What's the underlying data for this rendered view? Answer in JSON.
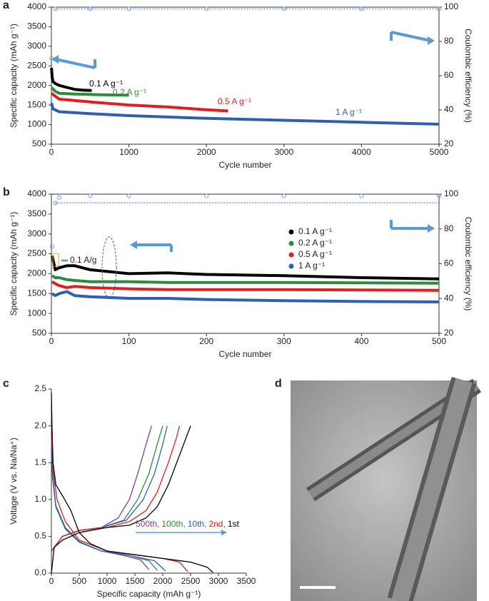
{
  "chart_data": [
    {
      "type": "line",
      "panel": "a",
      "xlabel": "Cycle number",
      "ylabel": "Specific capacity (mAh g⁻¹)",
      "y2label": "Coulombic efficiency (%)",
      "xlim": [
        0,
        5000
      ],
      "xticks": [
        0,
        1000,
        2000,
        3000,
        4000,
        5000
      ],
      "ylim": [
        500,
        4000
      ],
      "yticks": [
        500,
        1000,
        1500,
        2000,
        2500,
        3000,
        3500,
        4000
      ],
      "y2lim": [
        20,
        100
      ],
      "y2ticks": [
        20,
        40,
        60,
        80,
        100
      ],
      "series": [
        {
          "name": "0.1 A g⁻¹",
          "color": "#000000",
          "x": [
            1,
            10,
            20,
            50,
            100,
            200,
            300,
            400,
            520
          ],
          "values": [
            2450,
            2200,
            2100,
            2050,
            2000,
            1950,
            1900,
            1880,
            1870
          ]
        },
        {
          "name": "0.2 A g⁻¹",
          "color": "#2e8b3e",
          "x": [
            1,
            50,
            100,
            300,
            500,
            700,
            1000
          ],
          "values": [
            1950,
            1850,
            1800,
            1780,
            1770,
            1760,
            1750
          ]
        },
        {
          "name": "0.5 A g⁻¹",
          "color": "#e02020",
          "x": [
            1,
            100,
            500,
            1000,
            1500,
            2000,
            2280
          ],
          "values": [
            1800,
            1650,
            1580,
            1500,
            1450,
            1380,
            1350
          ]
        },
        {
          "name": "1 A g⁻¹",
          "color": "#2f5fb0",
          "x": [
            1,
            20,
            100,
            500,
            1000,
            2000,
            3000,
            4000,
            5000
          ],
          "values": [
            1550,
            1400,
            1330,
            1280,
            1230,
            1160,
            1110,
            1060,
            1010
          ]
        },
        {
          "color": "#7b9be0",
          "axis": "y2",
          "x": [
            1,
            50,
            500,
            1000,
            2000,
            3000,
            4000,
            5000
          ],
          "values": [
            70,
            99,
            99,
            99,
            99,
            99,
            99,
            99
          ]
        }
      ]
    },
    {
      "type": "line",
      "panel": "b",
      "xlabel": "Cycle number",
      "ylabel": "Specific capacity (mAh g⁻¹)",
      "y2label": "Coulombic efficiency (%)",
      "annotation": "0.1 A/g",
      "xlim": [
        0,
        500
      ],
      "xticks": [
        0,
        100,
        200,
        300,
        400,
        500
      ],
      "ylim": [
        500,
        4000
      ],
      "yticks": [
        500,
        1000,
        1500,
        2000,
        2500,
        3000,
        3500,
        4000
      ],
      "y2lim": [
        20,
        100
      ],
      "y2ticks": [
        20,
        40,
        60,
        80,
        100
      ],
      "series": [
        {
          "name": "0.1 A g⁻¹",
          "color": "#000000",
          "x": [
            1,
            5,
            10,
            20,
            30,
            50,
            100,
            150,
            200,
            300,
            400,
            500
          ],
          "values": [
            2450,
            2100,
            2150,
            2200,
            2200,
            2100,
            2000,
            2020,
            1980,
            1950,
            1900,
            1870
          ]
        },
        {
          "name": "0.2 A g⁻¹",
          "color": "#2e8b3e",
          "x": [
            1,
            5,
            10,
            20,
            30,
            50,
            100,
            150,
            200,
            300,
            400,
            500
          ],
          "values": [
            1950,
            1900,
            1900,
            1850,
            1830,
            1800,
            1800,
            1780,
            1780,
            1780,
            1770,
            1760
          ]
        },
        {
          "name": "0.5 A g⁻¹",
          "color": "#e02020",
          "x": [
            1,
            5,
            10,
            20,
            30,
            50,
            100,
            150,
            200,
            300,
            400,
            500
          ],
          "values": [
            1800,
            1750,
            1700,
            1650,
            1680,
            1650,
            1620,
            1600,
            1600,
            1600,
            1590,
            1580
          ]
        },
        {
          "name": "1 A g⁻¹",
          "color": "#2f5fb0",
          "x": [
            1,
            5,
            10,
            20,
            30,
            50,
            100,
            150,
            200,
            300,
            400,
            500
          ],
          "values": [
            1500,
            1450,
            1500,
            1550,
            1450,
            1420,
            1380,
            1380,
            1350,
            1320,
            1300,
            1290
          ]
        },
        {
          "color": "#7b9be0",
          "axis": "y2",
          "x": [
            1,
            5,
            10,
            50,
            100,
            200,
            300,
            400,
            500
          ],
          "values": [
            70,
            95,
            98,
            99,
            99,
            99,
            99,
            99,
            99
          ]
        }
      ]
    },
    {
      "type": "line",
      "panel": "c",
      "xlabel": "Specific capacity (mAh g⁻¹)",
      "ylabel": "Voltage (V vs. Na/Na⁺)",
      "xlim": [
        0,
        3500
      ],
      "xticks": [
        0,
        500,
        1000,
        1500,
        2000,
        2500,
        3000,
        3500
      ],
      "ylim": [
        0,
        2.5
      ],
      "yticks": [
        {
          "value": 0,
          "label": "0.0"
        },
        0.5,
        {
          "value": 1,
          "label": "1.0"
        },
        1.5,
        {
          "value": 2,
          "label": "2.0"
        },
        2.5
      ],
      "series": [
        {
          "name": "500th,",
          "color": "#7b3fa0",
          "x": [
            0,
            20,
            80,
            250,
            500,
            900,
            1300,
            1600,
            1750,
            null,
            0,
            200,
            500,
            900,
            1200,
            1400,
            1550,
            1700,
            1800
          ],
          "values": [
            1.9,
            1.3,
            0.9,
            0.6,
            0.42,
            0.3,
            0.24,
            0.18,
            0.05,
            null,
            0.3,
            0.5,
            0.58,
            0.62,
            0.75,
            1.0,
            1.35,
            1.75,
            2.0
          ]
        },
        {
          "name": "100th,",
          "color": "#2e8b3e",
          "x": [
            0,
            20,
            80,
            250,
            500,
            900,
            1400,
            1750,
            1900,
            null,
            0,
            200,
            500,
            900,
            1300,
            1550,
            1750,
            1900,
            2000
          ],
          "values": [
            1.9,
            1.3,
            0.9,
            0.6,
            0.42,
            0.3,
            0.24,
            0.17,
            0.04,
            null,
            0.3,
            0.5,
            0.58,
            0.62,
            0.72,
            1.0,
            1.35,
            1.75,
            2.0
          ]
        },
        {
          "name": "10th,",
          "color": "#2f5fb0",
          "x": [
            0,
            20,
            80,
            250,
            500,
            900,
            1400,
            1850,
            2050,
            null,
            0,
            200,
            500,
            900,
            1350,
            1650,
            1850,
            2000,
            2080
          ],
          "values": [
            1.95,
            1.35,
            0.92,
            0.62,
            0.43,
            0.3,
            0.24,
            0.17,
            0.03,
            null,
            0.3,
            0.5,
            0.58,
            0.62,
            0.72,
            1.0,
            1.35,
            1.75,
            2.0
          ]
        },
        {
          "name": "2nd,",
          "color": "#e02020",
          "x": [
            0,
            30,
            100,
            250,
            500,
            1000,
            1500,
            2000,
            2300,
            2450,
            null,
            0,
            200,
            500,
            1000,
            1400,
            1700,
            1900,
            2100,
            2250,
            2300
          ],
          "values": [
            2.0,
            1.4,
            1.0,
            0.7,
            0.45,
            0.3,
            0.25,
            0.2,
            0.15,
            0.02,
            null,
            0.3,
            0.5,
            0.58,
            0.62,
            0.7,
            0.85,
            1.1,
            1.5,
            1.85,
            2.0
          ]
        },
        {
          "name": "1st",
          "color": "#000000",
          "x": [
            0,
            10,
            30,
            80,
            200,
            350,
            500,
            700,
            1000,
            1500,
            2000,
            2500,
            2800,
            2900,
            null,
            0,
            50,
            200,
            500,
            1000,
            1400,
            1700,
            1900,
            2100,
            2300,
            2450,
            2500
          ],
          "values": [
            2.45,
            2.0,
            1.5,
            1.2,
            1.05,
            0.85,
            0.55,
            0.4,
            0.3,
            0.25,
            0.2,
            0.15,
            0.08,
            0.01,
            null,
            0.0,
            0.35,
            0.45,
            0.55,
            0.62,
            0.65,
            0.75,
            0.9,
            1.2,
            1.6,
            1.9,
            2.0
          ]
        }
      ]
    },
    {
      "type": "image",
      "panel": "d"
    }
  ]
}
